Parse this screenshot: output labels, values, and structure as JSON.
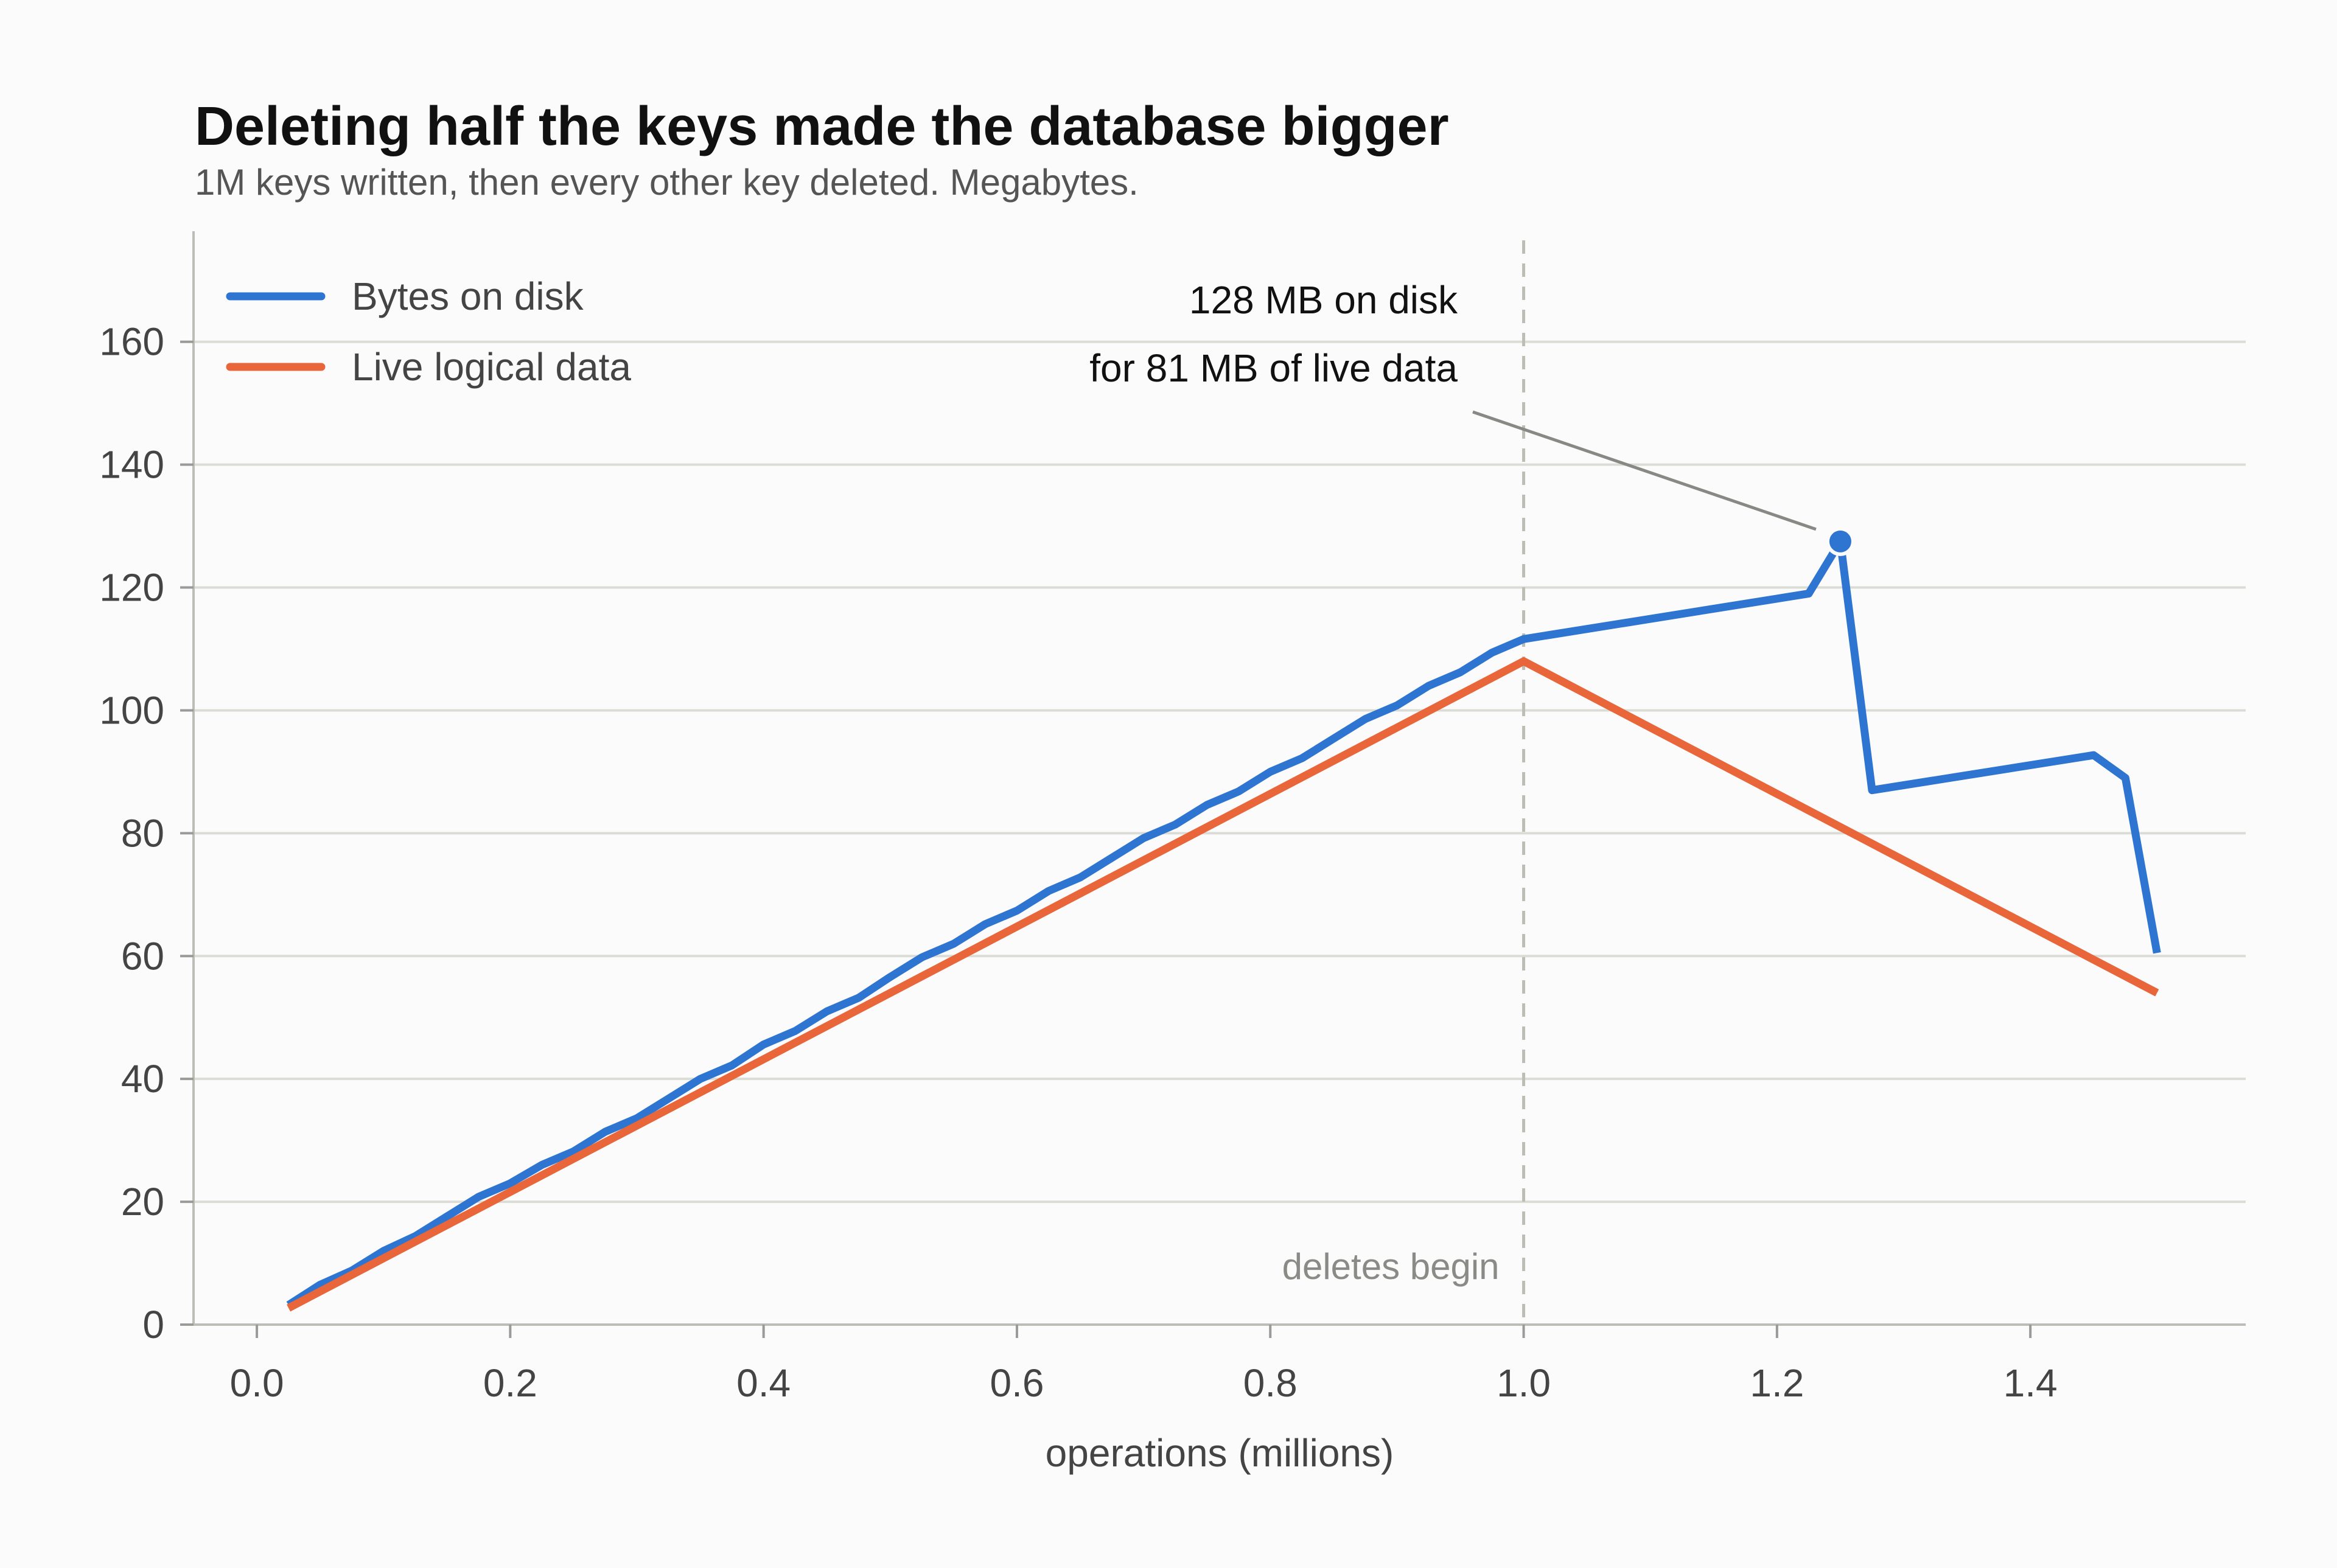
{
  "chart_data": {
    "type": "line",
    "title": "Deleting half the keys made the database bigger",
    "subtitle": "1M keys written, then every other key deleted. Megabytes.",
    "xlabel": "operations (millions)",
    "ylabel": "",
    "xlim": [
      -0.05,
      1.57
    ],
    "ylim": [
      0,
      178
    ],
    "xticks": [
      "0.0",
      "0.2",
      "0.4",
      "0.6",
      "0.8",
      "1.0",
      "1.2",
      "1.4"
    ],
    "yticks": [
      "0",
      "20",
      "40",
      "60",
      "80",
      "100",
      "120",
      "140",
      "160"
    ],
    "grid": "horizontal",
    "legend_position": "top-left",
    "series": [
      {
        "name": "Bytes on disk",
        "color": "#2e75d2",
        "points": [
          [
            0.025,
            3.2
          ],
          [
            0.05,
            6.5
          ],
          [
            0.075,
            8.8
          ],
          [
            0.1,
            12
          ],
          [
            0.125,
            14.4
          ],
          [
            0.15,
            17.6
          ],
          [
            0.175,
            20.8
          ],
          [
            0.2,
            23
          ],
          [
            0.225,
            26
          ],
          [
            0.25,
            28.2
          ],
          [
            0.275,
            31.4
          ],
          [
            0.3,
            33.6
          ],
          [
            0.325,
            36.8
          ],
          [
            0.35,
            40
          ],
          [
            0.375,
            42.2
          ],
          [
            0.4,
            45.6
          ],
          [
            0.425,
            47.8
          ],
          [
            0.45,
            51
          ],
          [
            0.475,
            53.2
          ],
          [
            0.5,
            56.6
          ],
          [
            0.525,
            59.8
          ],
          [
            0.55,
            62
          ],
          [
            0.575,
            65.2
          ],
          [
            0.6,
            67.4
          ],
          [
            0.625,
            70.6
          ],
          [
            0.65,
            72.8
          ],
          [
            0.675,
            76
          ],
          [
            0.7,
            79.2
          ],
          [
            0.725,
            81.4
          ],
          [
            0.75,
            84.6
          ],
          [
            0.775,
            86.8
          ],
          [
            0.8,
            90
          ],
          [
            0.825,
            92.2
          ],
          [
            0.85,
            95.4
          ],
          [
            0.875,
            98.6
          ],
          [
            0.9,
            100.8
          ],
          [
            0.925,
            104
          ],
          [
            0.95,
            106.2
          ],
          [
            0.975,
            109.4
          ],
          [
            1.0,
            111.6
          ],
          [
            1.225,
            119
          ],
          [
            1.25,
            127.5
          ],
          [
            1.275,
            87
          ],
          [
            1.45,
            92.7
          ],
          [
            1.475,
            89
          ],
          [
            1.5,
            60.5
          ]
        ]
      },
      {
        "name": "Live logical data",
        "color": "#e8663a",
        "points": [
          [
            0.025,
            2.7
          ],
          [
            1.0,
            108
          ],
          [
            1.5,
            54
          ]
        ]
      }
    ],
    "highlight_point": {
      "x": 1.25,
      "y": 127.5,
      "series": "Bytes on disk"
    },
    "annotation": {
      "lines": [
        "128 MB on disk",
        "for 81 MB of live data"
      ],
      "points_to": {
        "x": 1.25,
        "y": 127.5
      }
    },
    "reference_line": {
      "x": 1.0,
      "label": "deletes begin",
      "style": "dashed"
    }
  }
}
